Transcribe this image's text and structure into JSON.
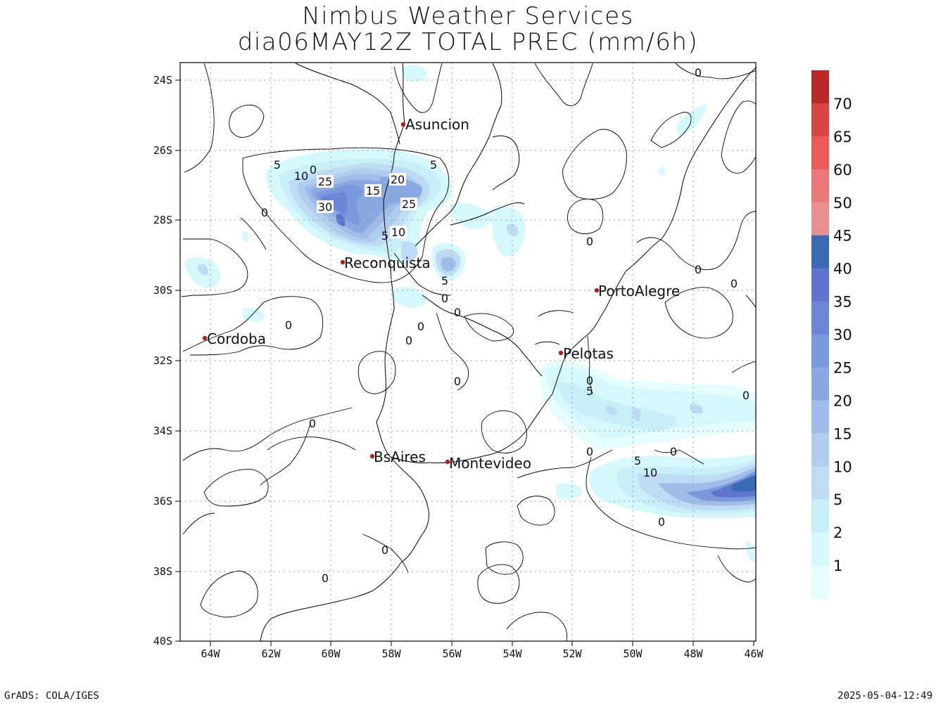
{
  "title": {
    "line1": "Nimbus Weather Services",
    "line2": "dia06MAY12Z TOTAL PREC (mm/6h)"
  },
  "axes": {
    "lat_labels": [
      "24S",
      "26S",
      "28S",
      "30S",
      "32S",
      "34S",
      "36S",
      "38S",
      "40S"
    ],
    "lon_labels": [
      "64W",
      "62W",
      "60W",
      "58W",
      "56W",
      "54W",
      "52W",
      "50W",
      "48W",
      "46W"
    ]
  },
  "colorbar": {
    "levels": [
      "1",
      "2",
      "5",
      "10",
      "15",
      "20",
      "25",
      "30",
      "35",
      "40",
      "45",
      "50",
      "60",
      "65",
      "70"
    ],
    "colors": [
      "#e6fdff",
      "#d4f8fc",
      "#c8eff8",
      "#bedbf3",
      "#b0cdee",
      "#9fbde8",
      "#8ba9e1",
      "#7a98dc",
      "#6b86d5",
      "#5e74cf",
      "#3a6ab2",
      "#e89090",
      "#ea7878",
      "#ec5a5a",
      "#d94444",
      "#b82a2a"
    ]
  },
  "cities": [
    {
      "name": "Asuncion",
      "lon": -57.6,
      "lat": -25.3
    },
    {
      "name": "Reconquista",
      "lon": -59.6,
      "lat": -29.2
    },
    {
      "name": "Cordoba",
      "lon": -64.2,
      "lat": -31.4
    },
    {
      "name": "PortoAlegre",
      "lon": -51.2,
      "lat": -30.0
    },
    {
      "name": "Pelotas",
      "lon": -52.3,
      "lat": -31.8
    },
    {
      "name": "BsAires",
      "lon": -58.6,
      "lat": -34.7
    },
    {
      "name": "Montevideo",
      "lon": -56.1,
      "lat": -34.9
    }
  ],
  "contour_labels": [
    "0",
    "5",
    "10",
    "15",
    "20",
    "25",
    "30"
  ],
  "footer": {
    "left": "GrADS: COLA/IGES",
    "right": "2025-05-04-12:49"
  }
}
